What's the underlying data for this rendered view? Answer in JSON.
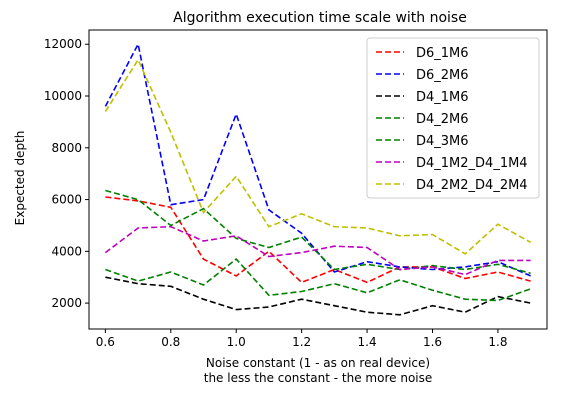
{
  "chart_data": {
    "type": "line",
    "title": "Algorithm execution time scale with noise",
    "xlabel": "Noise constant (1 - as on real device)",
    "xlabel_line2": "the less the constant - the more noise",
    "ylabel": "Expected depth",
    "xlim": [
      0.55,
      1.95
    ],
    "ylim": [
      1000,
      12550
    ],
    "xticks": [
      "0.6",
      "0.8",
      "1.0",
      "1.2",
      "1.4",
      "1.6",
      "1.8"
    ],
    "yticks": [
      "2000",
      "4000",
      "6000",
      "8000",
      "10000",
      "12000"
    ],
    "legend_position": "top-right",
    "line_style": "dashed",
    "x": [
      0.6,
      0.7,
      0.8,
      0.9,
      1.0,
      1.1,
      1.2,
      1.3,
      1.4,
      1.5,
      1.6,
      1.7,
      1.8,
      1.9
    ],
    "series": [
      {
        "name": "D6_1M6",
        "color": "#ff0000",
        "values": [
          6100,
          5950,
          5700,
          3700,
          3050,
          4000,
          2800,
          3300,
          2800,
          3400,
          3400,
          2950,
          3200,
          2850
        ]
      },
      {
        "name": "D6_2M6",
        "color": "#0000ff",
        "values": [
          9600,
          12000,
          5800,
          6000,
          9300,
          5600,
          4700,
          3200,
          3600,
          3400,
          3300,
          3400,
          3600,
          3050
        ]
      },
      {
        "name": "D4_1M6",
        "color": "#000000",
        "values": [
          3000,
          2750,
          2650,
          2150,
          1750,
          1850,
          2150,
          1900,
          1650,
          1550,
          1900,
          1650,
          2250,
          2000
        ]
      },
      {
        "name": "D4_2M6",
        "color": "#008000",
        "values": [
          6350,
          6000,
          5000,
          5650,
          4500,
          4150,
          4550,
          3300,
          3500,
          3300,
          3450,
          3300,
          3500,
          3150
        ]
      },
      {
        "name": "D4_3M6",
        "color": "#008000",
        "values": [
          3300,
          2850,
          3200,
          2700,
          3700,
          2300,
          2450,
          2750,
          2400,
          2900,
          2500,
          2150,
          2100,
          2550
        ]
      },
      {
        "name": "D4_1M2_D4_1M4",
        "color": "#bf00bf",
        "values": [
          3950,
          4900,
          4950,
          4400,
          4600,
          3800,
          3950,
          4200,
          4150,
          3300,
          3400,
          3100,
          3650,
          3650
        ]
      },
      {
        "name": "D4_2M2_D4_2M4",
        "color": "#bfbf00",
        "values": [
          9400,
          11400,
          8600,
          5500,
          6900,
          4950,
          5450,
          4950,
          4900,
          4600,
          4650,
          3900,
          5050,
          4350
        ]
      }
    ]
  }
}
